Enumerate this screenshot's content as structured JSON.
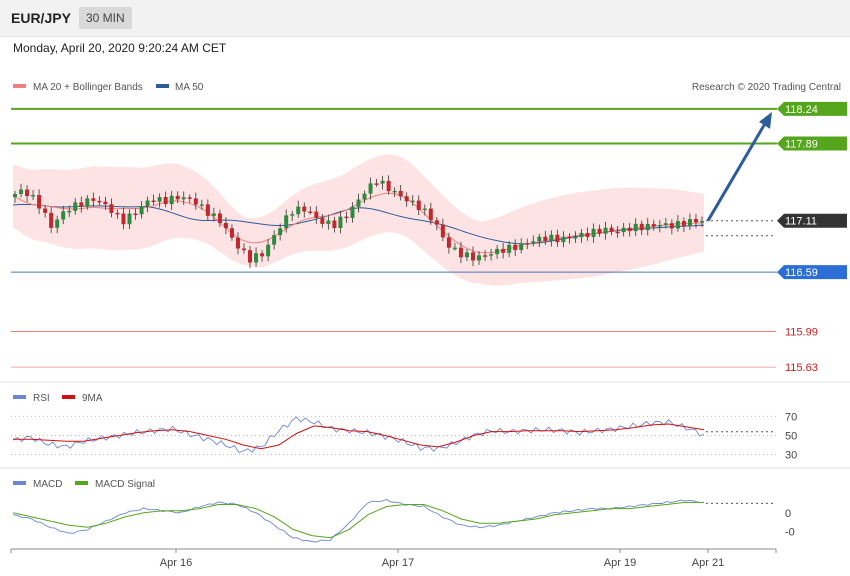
{
  "header": {
    "symbol": "EUR/JPY",
    "timeframe": "30 MIN",
    "datetime": "Monday, April 20, 2020 9:20:24 AM CET"
  },
  "colors": {
    "ma20": "#f08080",
    "bollinger_fill": "#fde3e3",
    "ma50": "#2e5c9a",
    "resistance": "#55a61c",
    "support": "#2b6fd6",
    "pivot": "#333333",
    "lower_level": "#e06060",
    "arrow": "#2e5c9a",
    "candle_up": "#2e8b3d",
    "candle_down": "#c0282d",
    "rsi": "#6b86d6",
    "rsi_ma": "#d01010",
    "macd": "#6b86d6",
    "macd_signal": "#55a61c"
  },
  "price_legend": {
    "ma20_label": "MA 20 + Bollinger Bands",
    "ma50_label": "MA 50",
    "copyright": "Research © 2020 Trading Central"
  },
  "rsi_legend": {
    "rsi_label": "RSI",
    "ma_label": "9MA"
  },
  "macd_legend": {
    "macd_label": "MACD",
    "signal_label": "MACD Signal"
  },
  "chart_data": {
    "type": "candlestick",
    "instrument": "EUR/JPY",
    "timeframe": "30 MIN",
    "levels": [
      {
        "label": "118.24",
        "value": 118.24,
        "kind": "resistance"
      },
      {
        "label": "117.89",
        "value": 117.89,
        "kind": "resistance"
      },
      {
        "label": "117.11",
        "value": 117.11,
        "kind": "pivot"
      },
      {
        "label": "116.59",
        "value": 116.59,
        "kind": "support"
      },
      {
        "label": "115.99",
        "value": 115.99,
        "kind": "lower"
      },
      {
        "label": "115.63",
        "value": 115.63,
        "kind": "lower"
      }
    ],
    "price_path": [
      117.35,
      117.42,
      117.3,
      117.05,
      117.22,
      117.28,
      117.33,
      117.25,
      117.1,
      117.2,
      117.33,
      117.31,
      117.35,
      117.32,
      117.2,
      117.1,
      116.88,
      116.72,
      116.78,
      117.02,
      117.21,
      117.23,
      117.1,
      117.07,
      117.18,
      117.38,
      117.52,
      117.42,
      117.33,
      117.25,
      117.12,
      116.86,
      116.77,
      116.73,
      116.78,
      116.82,
      116.85,
      116.91,
      116.94,
      116.92,
      116.95,
      116.98,
      117.02,
      117.0,
      117.04,
      117.05,
      117.07,
      117.06,
      117.1,
      117.11
    ],
    "price_ylim": [
      115.5,
      118.35
    ],
    "x_tick_labels": [
      "Apr 16",
      "Apr 17",
      "Apr 19",
      "Apr 21"
    ],
    "projection": {
      "from": 117.11,
      "to": 118.24
    },
    "rsi": {
      "axis_labels": [
        "70",
        "50",
        "30"
      ],
      "ticks": [
        70,
        50,
        30
      ],
      "ylim": [
        20,
        82
      ],
      "rsi_values": [
        45,
        48,
        41,
        38,
        44,
        47,
        50,
        53,
        55,
        57,
        51,
        46,
        40,
        33,
        38,
        55,
        68,
        64,
        57,
        55,
        53,
        49,
        44,
        37,
        36,
        42,
        50,
        55,
        54,
        55,
        56,
        55,
        53,
        55,
        57,
        60,
        63,
        64,
        58,
        51
      ],
      "ma_values": [
        46,
        46,
        45,
        44,
        44,
        47,
        50,
        53,
        55,
        56,
        54,
        50,
        46,
        40,
        36,
        40,
        52,
        60,
        58,
        55,
        54,
        50,
        45,
        40,
        38,
        43,
        50,
        54,
        54,
        55,
        55,
        55,
        54,
        55,
        56,
        58,
        61,
        62,
        59,
        56
      ]
    },
    "macd": {
      "axis_labels": [
        "0",
        "-0"
      ],
      "ticks": [
        0,
        -0.09
      ],
      "ylim": [
        -0.16,
        0.1
      ],
      "macd_values": [
        -0.01,
        -0.03,
        -0.07,
        -0.1,
        -0.08,
        -0.04,
        0.0,
        0.02,
        0.01,
        0.0,
        0.03,
        0.05,
        0.04,
        0.0,
        -0.06,
        -0.12,
        -0.14,
        -0.13,
        -0.05,
        0.05,
        0.06,
        0.04,
        0.03,
        -0.02,
        -0.06,
        -0.07,
        -0.06,
        -0.04,
        -0.02,
        0.0,
        0.01,
        0.02,
        0.02,
        0.03,
        0.04,
        0.05,
        0.06,
        0.05
      ],
      "signal_values": [
        0.0,
        -0.02,
        -0.04,
        -0.06,
        -0.07,
        -0.05,
        -0.02,
        0.0,
        0.01,
        0.01,
        0.02,
        0.04,
        0.04,
        0.02,
        -0.02,
        -0.08,
        -0.11,
        -0.12,
        -0.08,
        -0.01,
        0.03,
        0.04,
        0.04,
        0.01,
        -0.03,
        -0.05,
        -0.05,
        -0.04,
        -0.03,
        -0.01,
        0.0,
        0.01,
        0.02,
        0.02,
        0.03,
        0.04,
        0.05,
        0.05
      ]
    }
  }
}
